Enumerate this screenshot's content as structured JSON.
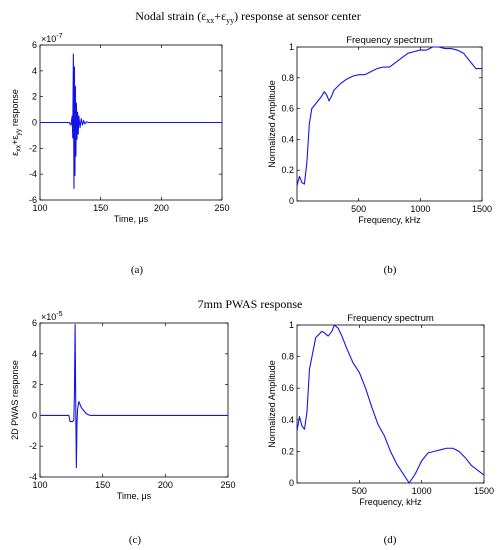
{
  "section_titles": {
    "top": "Nodal strain (ε",
    "top_sub1": "xx",
    "top_mid": "+ε",
    "top_sub2": "yy",
    "top_end": ")  response at sensor center",
    "bottom": "7mm PWAS response"
  },
  "panel_labels": [
    "(a)",
    "(b)",
    "(c)",
    "(d)"
  ],
  "colors": {
    "line": "#1414e6",
    "axis": "#000000"
  },
  "chart_data": [
    {
      "id": "a",
      "type": "line",
      "title": "",
      "xlabel": "Time, μs",
      "ylabel": "ε_xx+ε_yy response",
      "ylabel_parts": [
        "ε",
        "xx",
        "+ε",
        "yy",
        " response"
      ],
      "xlim": [
        100,
        250
      ],
      "ylim": [
        -6,
        6
      ],
      "exponent": "×10",
      "exponent_power": "-7",
      "xticks": [
        "100",
        "150",
        "200",
        "250"
      ],
      "yticks": [
        "-6",
        "-4",
        "-2",
        "0",
        "2",
        "4",
        "6"
      ],
      "series": [
        {
          "x": [
            100,
            124,
            125.5,
            126.5,
            127,
            127.5,
            128,
            128.4,
            128.8,
            129.2,
            129.6,
            130,
            130.5,
            131,
            131.5,
            132,
            133,
            134,
            135,
            136,
            137,
            138.5,
            140,
            145,
            250
          ],
          "y": [
            0,
            0,
            -0.2,
            0.5,
            -1.2,
            5.3,
            -5.1,
            4.3,
            -4.1,
            2.8,
            -2.6,
            1.5,
            -1.3,
            0.8,
            -0.9,
            0.5,
            -0.4,
            0.3,
            -0.2,
            0.15,
            -0.1,
            0.05,
            0,
            0,
            0
          ]
        }
      ]
    },
    {
      "id": "b",
      "type": "line",
      "title": "Frequency spectrum",
      "xlabel": "Frequency, kHz",
      "ylabel": "Normalized Amplitude",
      "xlim": [
        0,
        1500
      ],
      "ylim": [
        0,
        1
      ],
      "xticks": [
        "500",
        "1000",
        "1500"
      ],
      "yticks": [
        "0",
        "0.2",
        "0.4",
        "0.6",
        "0.8",
        "1"
      ],
      "series": [
        {
          "x": [
            0,
            20,
            40,
            60,
            80,
            100,
            120,
            150,
            180,
            200,
            220,
            240,
            260,
            280,
            300,
            350,
            400,
            450,
            500,
            550,
            600,
            650,
            700,
            750,
            800,
            850,
            900,
            950,
            1000,
            1050,
            1100,
            1150,
            1200,
            1250,
            1300,
            1350,
            1400,
            1450,
            1500
          ],
          "y": [
            0.1,
            0.16,
            0.12,
            0.11,
            0.25,
            0.5,
            0.6,
            0.63,
            0.66,
            0.68,
            0.71,
            0.69,
            0.65,
            0.68,
            0.72,
            0.76,
            0.79,
            0.81,
            0.82,
            0.82,
            0.84,
            0.86,
            0.87,
            0.87,
            0.9,
            0.93,
            0.96,
            0.97,
            0.98,
            0.98,
            1.0,
            1.0,
            0.99,
            0.99,
            0.98,
            0.96,
            0.91,
            0.86,
            0.86
          ]
        }
      ]
    },
    {
      "id": "c",
      "type": "line",
      "title": "",
      "xlabel": "Time, μs",
      "ylabel": "2D PWAS response",
      "xlim": [
        100,
        250
      ],
      "ylim": [
        -4,
        6
      ],
      "exponent": "×10",
      "exponent_power": "-5",
      "xticks": [
        "100",
        "150",
        "200",
        "250"
      ],
      "yticks": [
        "-4",
        "-2",
        "0",
        "2",
        "4",
        "6"
      ],
      "series": [
        {
          "x": [
            100,
            123,
            124,
            125,
            126,
            127,
            127.5,
            128,
            128.5,
            129,
            129.5,
            130,
            131,
            132,
            133,
            135,
            137,
            140,
            145,
            250
          ],
          "y": [
            0,
            0,
            -0.4,
            -0.4,
            -0.4,
            -0.3,
            1.5,
            5.9,
            1.0,
            -3.4,
            -0.5,
            0.4,
            0.9,
            0.7,
            0.5,
            0.3,
            0.1,
            0,
            0,
            0
          ]
        }
      ]
    },
    {
      "id": "d",
      "type": "line",
      "title": "Frequency spectrum",
      "xlabel": "Frequency, kHz",
      "ylabel": "Normalized Amplitude",
      "xlim": [
        0,
        1500
      ],
      "ylim": [
        0,
        1
      ],
      "xticks": [
        "500",
        "1000",
        "1500"
      ],
      "yticks": [
        "0",
        "0.2",
        "0.4",
        "0.6",
        "0.8",
        "1"
      ],
      "series": [
        {
          "x": [
            0,
            20,
            40,
            60,
            80,
            100,
            150,
            200,
            220,
            250,
            280,
            300,
            330,
            360,
            400,
            450,
            500,
            550,
            600,
            650,
            700,
            750,
            800,
            850,
            900,
            950,
            1000,
            1050,
            1100,
            1150,
            1200,
            1250,
            1300,
            1350,
            1400,
            1450,
            1500
          ],
          "y": [
            0.33,
            0.42,
            0.36,
            0.34,
            0.45,
            0.72,
            0.92,
            0.96,
            0.95,
            0.93,
            0.96,
            1.0,
            0.98,
            0.93,
            0.85,
            0.76,
            0.7,
            0.6,
            0.48,
            0.37,
            0.3,
            0.2,
            0.12,
            0.06,
            0.0,
            0.06,
            0.14,
            0.19,
            0.2,
            0.21,
            0.22,
            0.22,
            0.2,
            0.16,
            0.11,
            0.08,
            0.05
          ]
        }
      ]
    }
  ]
}
